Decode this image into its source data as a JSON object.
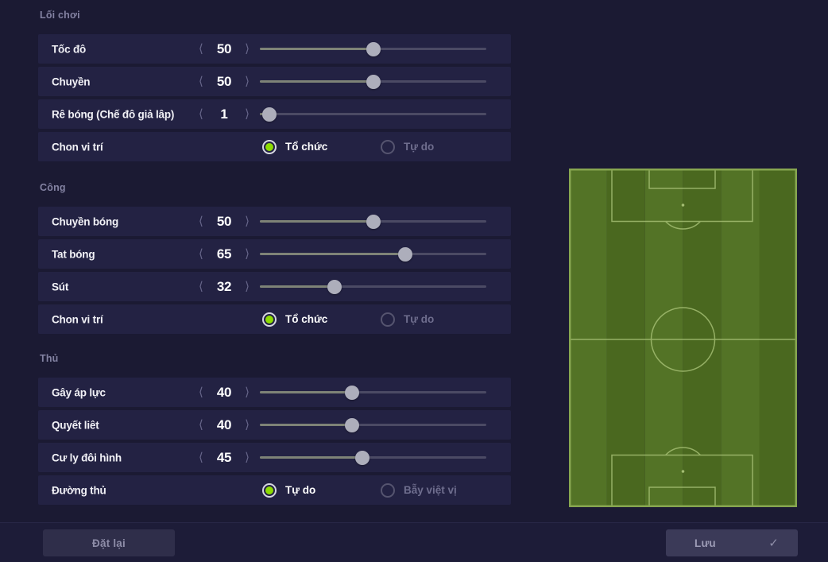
{
  "colors": {
    "accent_green": "#8ddc02",
    "pitch_stripe_light": "#537326",
    "pitch_stripe_dark": "#4a681f",
    "pitch_line": "#a3bd72",
    "pitch_border": "#87a650"
  },
  "icons": {
    "chevron_left": "⟨",
    "chevron_right": "⟩",
    "check": "✓"
  },
  "sections": [
    {
      "title": "Lối chơi",
      "rows": [
        {
          "type": "slider",
          "label": "Tốc đô",
          "value": 50
        },
        {
          "type": "slider",
          "label": "Chuyền",
          "value": 50
        },
        {
          "type": "slider",
          "label": "Rê bóng (Chế đô giả lâp)",
          "value": 1
        },
        {
          "type": "radio",
          "label": "Chon vi trí",
          "options": [
            {
              "label": "Tổ chức",
              "selected": true
            },
            {
              "label": "Tự do",
              "selected": false
            }
          ]
        }
      ]
    },
    {
      "title": "Công",
      "rows": [
        {
          "type": "slider",
          "label": "Chuyền bóng",
          "value": 50
        },
        {
          "type": "slider",
          "label": "Tat bóng",
          "value": 65
        },
        {
          "type": "slider",
          "label": "Sút",
          "value": 32
        },
        {
          "type": "radio",
          "label": "Chon vi trí",
          "options": [
            {
              "label": "Tổ chức",
              "selected": true
            },
            {
              "label": "Tự do",
              "selected": false
            }
          ]
        }
      ]
    },
    {
      "title": "Thủ",
      "rows": [
        {
          "type": "slider",
          "label": "Gây áp lực",
          "value": 40
        },
        {
          "type": "slider",
          "label": "Quyết liêt",
          "value": 40
        },
        {
          "type": "slider",
          "label": "Cư ly đôi hình",
          "value": 45
        },
        {
          "type": "radio",
          "label": "Đường thủ",
          "options": [
            {
              "label": "Tự do",
              "selected": true
            },
            {
              "label": "Bẫy việt vị",
              "selected": false
            }
          ]
        }
      ]
    }
  ],
  "footer": {
    "reset_label": "Đặt lại",
    "save_label": "Lưu"
  }
}
